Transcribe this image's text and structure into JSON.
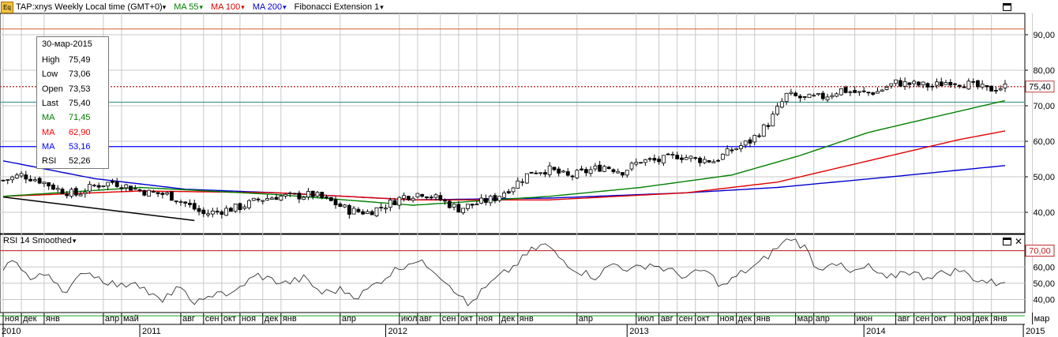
{
  "header": {
    "symbol_label": "TAP:xnys Weekly Local time (GMT+0)",
    "ma55_label": "MA 55",
    "ma100_label": "MA 100",
    "ma200_label": "MA 200",
    "fib_label": "Fibonacci Extension 1",
    "eq_icon": "Eq"
  },
  "infobox": {
    "date": "30-мар-2015",
    "rows": [
      {
        "label": "High",
        "value": "75,49",
        "color": "#000000"
      },
      {
        "label": "Low",
        "value": "73,06",
        "color": "#000000"
      },
      {
        "label": "Open",
        "value": "73,53",
        "color": "#000000"
      },
      {
        "label": "Last",
        "value": "75,40",
        "color": "#000000"
      },
      {
        "label": "MA",
        "value": "71,45",
        "color": "#008000"
      },
      {
        "label": "MA",
        "value": "62,90",
        "color": "#ff0000"
      },
      {
        "label": "MA",
        "value": "53,16",
        "color": "#0000ff"
      },
      {
        "label": "RSI",
        "value": "52,26",
        "color": "#000000"
      }
    ]
  },
  "rsi_panel": {
    "title": "RSI 14 Smoothed"
  },
  "colors": {
    "ma55": "#008000",
    "ma100": "#e00000",
    "ma200": "#0000d0",
    "up_candle": "#ffffff",
    "down_candle": "#000000",
    "grid": "#c8c8c8",
    "hline_red": "#c04040",
    "hline_teal": "#4a9a9a",
    "hline_blue": "#0000ff"
  },
  "chart_data": [
    {
      "type": "candlestick",
      "title": "TAP:xnys Weekly",
      "y_ticks": [
        "40,00",
        "50,00",
        "60,00",
        "70,00",
        "80,00",
        "90,00"
      ],
      "ylim": [
        34.0,
        96.0
      ],
      "price_label": "75,40",
      "horizontal_lines": [
        91.6,
        75.4,
        71.0,
        58.5
      ],
      "trend_line": [
        [
          40.5,
          44.3
        ],
        [
          41.3,
          39.6
        ],
        [
          42.0,
          37.7
        ]
      ],
      "anchors_week_price": [
        [
          0,
          49.0
        ],
        [
          4,
          50.5
        ],
        [
          8,
          49.0
        ],
        [
          12,
          46.5
        ],
        [
          16,
          45.0
        ],
        [
          20,
          47.5
        ],
        [
          24,
          48.5
        ],
        [
          28,
          47.0
        ],
        [
          32,
          45.5
        ],
        [
          36,
          45.0
        ],
        [
          40,
          42.5
        ],
        [
          44,
          39.5
        ],
        [
          48,
          40.5
        ],
        [
          52,
          41.5
        ],
        [
          56,
          43.5
        ],
        [
          60,
          44.5
        ],
        [
          64,
          44.5
        ],
        [
          68,
          45.0
        ],
        [
          72,
          43.0
        ],
        [
          76,
          40.5
        ],
        [
          80,
          40.0
        ],
        [
          84,
          42.0
        ],
        [
          88,
          44.5
        ],
        [
          92,
          45.5
        ],
        [
          96,
          43.5
        ],
        [
          100,
          41.0
        ],
        [
          104,
          42.5
        ],
        [
          108,
          44.0
        ],
        [
          112,
          47.5
        ],
        [
          116,
          51.5
        ],
        [
          120,
          52.0
        ],
        [
          124,
          50.0
        ],
        [
          128,
          51.5
        ],
        [
          132,
          53.0
        ],
        [
          136,
          51.5
        ],
        [
          140,
          54.5
        ],
        [
          144,
          54.5
        ],
        [
          148,
          56.0
        ],
        [
          152,
          55.0
        ],
        [
          156,
          54.5
        ],
        [
          160,
          57.5
        ],
        [
          164,
          60.0
        ],
        [
          168,
          65.0
        ],
        [
          172,
          73.0
        ],
        [
          176,
          72.0
        ],
        [
          180,
          72.5
        ],
        [
          184,
          74.5
        ],
        [
          188,
          73.5
        ],
        [
          192,
          74.0
        ],
        [
          196,
          76.5
        ],
        [
          200,
          76.0
        ],
        [
          204,
          75.5
        ],
        [
          208,
          77.0
        ],
        [
          212,
          76.0
        ],
        [
          216,
          74.5
        ],
        [
          220,
          75.4
        ]
      ],
      "ma55_anchors": [
        [
          0,
          44.5
        ],
        [
          30,
          47.0
        ],
        [
          60,
          45.0
        ],
        [
          90,
          42.0
        ],
        [
          120,
          44.5
        ],
        [
          140,
          47.0
        ],
        [
          160,
          50.5
        ],
        [
          175,
          56.0
        ],
        [
          190,
          62.5
        ],
        [
          205,
          67.0
        ],
        [
          220,
          71.45
        ]
      ],
      "ma100_anchors": [
        [
          0,
          44.5
        ],
        [
          30,
          46.0
        ],
        [
          60,
          45.5
        ],
        [
          90,
          43.5
        ],
        [
          120,
          43.5
        ],
        [
          150,
          45.5
        ],
        [
          170,
          48.5
        ],
        [
          190,
          54.5
        ],
        [
          210,
          60.5
        ],
        [
          220,
          62.9
        ]
      ],
      "ma200_anchors": [
        [
          0,
          54.5
        ],
        [
          20,
          49.5
        ],
        [
          40,
          46.5
        ],
        [
          60,
          45.5
        ],
        [
          90,
          43.5
        ],
        [
          120,
          44.0
        ],
        [
          150,
          45.5
        ],
        [
          170,
          47.0
        ],
        [
          195,
          50.0
        ],
        [
          220,
          53.16
        ]
      ]
    },
    {
      "type": "line",
      "title": "RSI 14 Smoothed",
      "y_ticks": [
        "40,00",
        "50,00",
        "60,00",
        "70,00"
      ],
      "ylim": [
        32.0,
        80.0
      ],
      "reference_lines": [
        30,
        70
      ],
      "reference_label": "70,00",
      "anchors_week_value": [
        [
          0,
          60
        ],
        [
          3,
          64
        ],
        [
          6,
          52
        ],
        [
          10,
          56
        ],
        [
          14,
          44
        ],
        [
          18,
          58
        ],
        [
          22,
          52
        ],
        [
          26,
          48
        ],
        [
          29,
          52
        ],
        [
          32,
          44
        ],
        [
          35,
          38
        ],
        [
          38,
          48
        ],
        [
          41,
          40
        ],
        [
          44,
          38
        ],
        [
          47,
          46
        ],
        [
          50,
          42
        ],
        [
          53,
          50
        ],
        [
          56,
          55
        ],
        [
          59,
          52
        ],
        [
          62,
          50
        ],
        [
          66,
          53
        ],
        [
          70,
          44
        ],
        [
          74,
          46
        ],
        [
          78,
          42
        ],
        [
          82,
          50
        ],
        [
          86,
          58
        ],
        [
          90,
          64
        ],
        [
          94,
          60
        ],
        [
          97,
          52
        ],
        [
          100,
          44
        ],
        [
          102,
          36
        ],
        [
          104,
          42
        ],
        [
          108,
          52
        ],
        [
          112,
          60
        ],
        [
          116,
          70
        ],
        [
          119,
          74
        ],
        [
          122,
          66
        ],
        [
          126,
          58
        ],
        [
          130,
          54
        ],
        [
          134,
          62
        ],
        [
          138,
          58
        ],
        [
          142,
          62
        ],
        [
          146,
          58
        ],
        [
          150,
          54
        ],
        [
          154,
          58
        ],
        [
          158,
          48
        ],
        [
          162,
          56
        ],
        [
          166,
          62
        ],
        [
          170,
          72
        ],
        [
          173,
          78
        ],
        [
          176,
          72
        ],
        [
          179,
          58
        ],
        [
          182,
          64
        ],
        [
          186,
          56
        ],
        [
          190,
          60
        ],
        [
          194,
          52
        ],
        [
          198,
          58
        ],
        [
          202,
          54
        ],
        [
          206,
          56
        ],
        [
          210,
          58
        ],
        [
          214,
          52
        ],
        [
          218,
          50
        ],
        [
          220,
          52.26
        ]
      ]
    }
  ],
  "months": [
    {
      "label": "ноя",
      "w": 0
    },
    {
      "label": "дек",
      "w": 4
    },
    {
      "label": "янв",
      "w": 9
    },
    {
      "label": "апр",
      "w": 22
    },
    {
      "label": "май",
      "w": 26
    },
    {
      "label": "авг",
      "w": 39
    },
    {
      "label": "сен",
      "w": 44
    },
    {
      "label": "окт",
      "w": 48
    },
    {
      "label": "ноя",
      "w": 52
    },
    {
      "label": "дек",
      "w": 57
    },
    {
      "label": "янв",
      "w": 61
    },
    {
      "label": "апр",
      "w": 74
    },
    {
      "label": "июл",
      "w": 87
    },
    {
      "label": "авг",
      "w": 91
    },
    {
      "label": "сен",
      "w": 96
    },
    {
      "label": "окт",
      "w": 100
    },
    {
      "label": "ноя",
      "w": 104
    },
    {
      "label": "дек",
      "w": 109
    },
    {
      "label": "янв",
      "w": 113
    },
    {
      "label": "апр",
      "w": 126
    },
    {
      "label": "июл",
      "w": 139
    },
    {
      "label": "авг",
      "w": 144
    },
    {
      "label": "сен",
      "w": 148
    },
    {
      "label": "окт",
      "w": 152
    },
    {
      "label": "ноя",
      "w": 157
    },
    {
      "label": "дек",
      "w": 161
    },
    {
      "label": "янв",
      "w": 165
    },
    {
      "label": "мар",
      "w": 174
    },
    {
      "label": "апр",
      "w": 178
    },
    {
      "label": "июн",
      "w": 187
    },
    {
      "label": "авг",
      "w": 196
    },
    {
      "label": "сен",
      "w": 200
    },
    {
      "label": "окт",
      "w": 204
    },
    {
      "label": "ноя",
      "w": 209
    },
    {
      "label": "дек",
      "w": 213
    },
    {
      "label": "янв",
      "w": 217
    },
    {
      "label": "мар",
      "w": 226
    }
  ],
  "years": [
    {
      "label": "2010",
      "w": 0
    },
    {
      "label": "2011",
      "w": 30
    },
    {
      "label": "2012",
      "w": 84
    },
    {
      "label": "2013",
      "w": 137
    },
    {
      "label": "2014",
      "w": 189
    },
    {
      "label": "2015",
      "w": 224
    }
  ]
}
